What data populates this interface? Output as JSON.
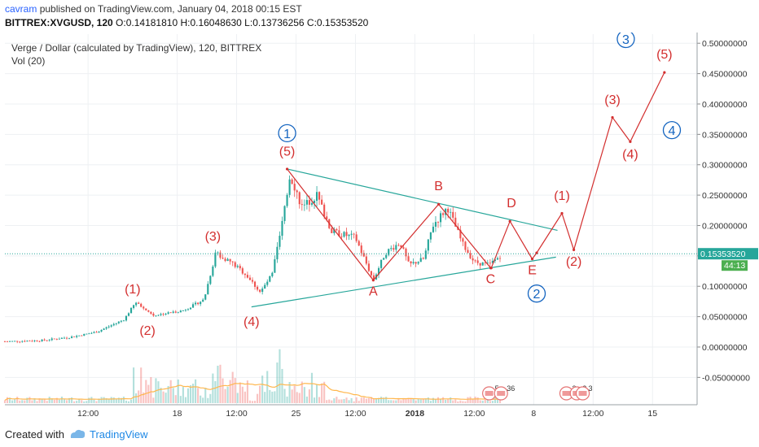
{
  "header": {
    "user": "cavram",
    "published_text": "published on TradingView.com, January 04, 2018 00:15 EST",
    "ohlc_line": "BITTREX:XVGUSD, 120",
    "ohlc_values": "O:0.14181810 H:0.16048630 L:0.13736256 C:0.15353520"
  },
  "footer": {
    "created_with": "Created with",
    "brand": "TradingView"
  },
  "colors": {
    "wave": "#d32f2f",
    "trend": "#26a69a",
    "circle": "#1565c0",
    "up": "#26a69a",
    "down": "#ef5350",
    "ma": "#ffb74d",
    "price": "#26a69a"
  },
  "chart_data": {
    "type": "candlestick",
    "title": "Verge / Dollar (calculated by TradingView), 120, BITTREX",
    "indicator": "Vol (20)",
    "y_ticks": [
      "0.50000000",
      "0.45000000",
      "0.40000000",
      "0.35000000",
      "0.30000000",
      "0.25000000",
      "0.20000000",
      "0.15000000",
      "0.10000000",
      "0.05000000",
      "0.00000000",
      "-0.05000000"
    ],
    "y_tick_values": [
      0.5,
      0.45,
      0.4,
      0.35,
      0.3,
      0.25,
      0.2,
      0.15,
      0.1,
      0.05,
      0.0,
      -0.05
    ],
    "ylim": [
      -0.095,
      0.515
    ],
    "x_ticks": [
      "12:00",
      "18",
      "12:00",
      "25",
      "12:00",
      "2018",
      "12:00",
      "8",
      "12:00",
      "15"
    ],
    "x_tick_days": [
      -13.5,
      -10.5,
      -8.5,
      -6.5,
      -4.5,
      -2.5,
      -0.5,
      1.5,
      3.5,
      5.5
    ],
    "price_label": "0.15353520",
    "countdown": "44:13",
    "last_price": 0.1535352,
    "anchors": [
      [
        -16.3,
        0.009
      ],
      [
        -15.0,
        0.011
      ],
      [
        -14.0,
        0.017
      ],
      [
        -13.2,
        0.025
      ],
      [
        -12.3,
        0.045
      ],
      [
        -11.9,
        0.073
      ],
      [
        -11.3,
        0.052
      ],
      [
        -10.3,
        0.06
      ],
      [
        -9.6,
        0.078
      ],
      [
        -9.2,
        0.155
      ],
      [
        -8.7,
        0.14
      ],
      [
        -8.2,
        0.12
      ],
      [
        -7.7,
        0.09
      ],
      [
        -7.3,
        0.12
      ],
      [
        -6.9,
        0.22
      ],
      [
        -6.7,
        0.285
      ],
      [
        -6.3,
        0.23
      ],
      [
        -5.8,
        0.25
      ],
      [
        -5.3,
        0.19
      ],
      [
        -4.5,
        0.18
      ],
      [
        -3.9,
        0.11
      ],
      [
        -3.5,
        0.155
      ],
      [
        -3.0,
        0.172
      ],
      [
        -2.7,
        0.135
      ],
      [
        -2.2,
        0.145
      ],
      [
        -1.9,
        0.2
      ],
      [
        -1.4,
        0.23
      ],
      [
        -0.9,
        0.17
      ],
      [
        -0.5,
        0.14
      ],
      [
        0.0,
        0.135
      ],
      [
        0.45,
        0.1535
      ]
    ],
    "volume_hint": "tall spikes around 18 and 25, low elsewhere",
    "wave_path": [
      [
        -6.8,
        0.293
      ],
      [
        -3.9,
        0.11
      ],
      [
        -1.7,
        0.235
      ],
      [
        0.05,
        0.13
      ],
      [
        0.07,
        0.13
      ],
      [
        0.7,
        0.207
      ],
      [
        1.45,
        0.145
      ],
      [
        1.6,
        0.155
      ],
      [
        2.45,
        0.22
      ],
      [
        2.85,
        0.16
      ],
      [
        4.15,
        0.378
      ],
      [
        4.75,
        0.338
      ],
      [
        5.9,
        0.452
      ]
    ],
    "trend_upper": [
      [
        -6.8,
        0.293
      ],
      [
        2.3,
        0.192
      ]
    ],
    "trend_lower": [
      [
        -8.0,
        0.066
      ],
      [
        2.25,
        0.148
      ]
    ],
    "labels": [
      {
        "text": "(1)",
        "x": -12.0,
        "y": 0.088,
        "kind": "wave"
      },
      {
        "text": "(2)",
        "x": -11.5,
        "y": 0.02,
        "kind": "wave"
      },
      {
        "text": "(3)",
        "x": -9.3,
        "y": 0.175,
        "kind": "wave"
      },
      {
        "text": "(4)",
        "x": -8.0,
        "y": 0.035,
        "kind": "wave"
      },
      {
        "text": "(5)",
        "x": -6.8,
        "y": 0.315,
        "kind": "wave"
      },
      {
        "text": "A",
        "x": -3.9,
        "y": 0.085,
        "kind": "wave"
      },
      {
        "text": "B",
        "x": -1.7,
        "y": 0.258,
        "kind": "wave"
      },
      {
        "text": "C",
        "x": 0.05,
        "y": 0.105,
        "kind": "wave"
      },
      {
        "text": "D",
        "x": 0.75,
        "y": 0.23,
        "kind": "wave"
      },
      {
        "text": "E",
        "x": 1.45,
        "y": 0.12,
        "kind": "wave"
      },
      {
        "text": "(1)",
        "x": 2.45,
        "y": 0.242,
        "kind": "wave"
      },
      {
        "text": "(2)",
        "x": 2.85,
        "y": 0.134,
        "kind": "wave"
      },
      {
        "text": "(3)",
        "x": 4.15,
        "y": 0.4,
        "kind": "wave"
      },
      {
        "text": "(4)",
        "x": 4.75,
        "y": 0.31,
        "kind": "wave"
      },
      {
        "text": "(5)",
        "x": 5.9,
        "y": 0.475,
        "kind": "wave"
      },
      {
        "text": "1",
        "x": -6.8,
        "y": 0.352,
        "kind": "circle"
      },
      {
        "text": "2",
        "x": 1.6,
        "y": 0.088,
        "kind": "circle"
      },
      {
        "text": "3",
        "x": 4.6,
        "y": 0.507,
        "kind": "circle"
      },
      {
        "text": "4",
        "x": 6.15,
        "y": 0.357,
        "kind": "circle"
      }
    ],
    "events": [
      {
        "label": "5",
        "x": 0.0
      },
      {
        "label": "36",
        "x": 0.4
      },
      {
        "label": "3",
        "x": 2.6
      },
      {
        "label": "2",
        "x": 2.95
      },
      {
        "label": "3",
        "x": 3.15
      }
    ]
  }
}
